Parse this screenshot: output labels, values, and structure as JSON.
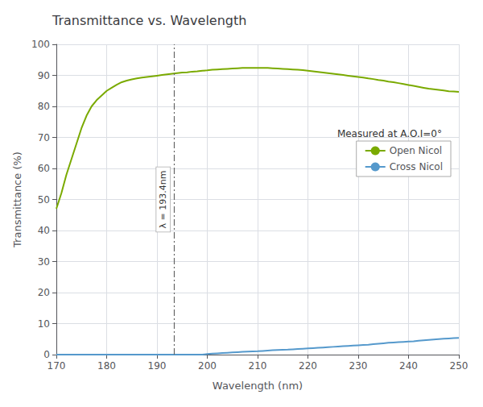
{
  "chart_data": {
    "type": "line",
    "title": "Transmittance vs. Wavelength",
    "x_label": "Wavelength (nm)",
    "y_label": "Transmittance (%)",
    "xlim": [
      170,
      250
    ],
    "ylim": [
      0,
      100
    ],
    "xticks": [
      170,
      180,
      190,
      200,
      210,
      220,
      230,
      240,
      250
    ],
    "yticks": [
      0,
      10,
      20,
      30,
      40,
      50,
      60,
      70,
      80,
      90,
      100
    ],
    "grid": true,
    "legend": "right",
    "legend_title": "Measured at A.O.I=0°",
    "annotations": [
      {
        "x": 193.4,
        "label": "λ = 193.4nm"
      }
    ],
    "x": [
      170,
      171,
      172,
      173,
      174,
      175,
      176,
      177,
      178,
      179,
      180,
      181,
      182,
      183,
      184,
      185,
      186,
      187,
      188,
      189,
      190,
      191,
      192,
      193,
      194,
      195,
      196,
      197,
      198,
      199,
      200,
      201,
      202,
      203,
      204,
      205,
      206,
      207,
      208,
      209,
      210,
      211,
      212,
      213,
      214,
      215,
      216,
      217,
      218,
      219,
      220,
      221,
      222,
      223,
      224,
      225,
      226,
      227,
      228,
      229,
      230,
      231,
      232,
      233,
      234,
      235,
      236,
      237,
      238,
      239,
      240,
      241,
      242,
      243,
      244,
      245,
      246,
      247,
      248,
      249,
      250
    ],
    "series": [
      {
        "name": "Open Nicol",
        "color": "#7aaa00",
        "values": [
          47,
          52,
          58,
          63,
          68,
          73,
          77,
          80,
          82,
          83.5,
          85,
          86,
          87,
          87.8,
          88.3,
          88.7,
          89.0,
          89.3,
          89.5,
          89.7,
          89.9,
          90.1,
          90.3,
          90.5,
          90.7,
          90.9,
          91.0,
          91.2,
          91.3,
          91.5,
          91.6,
          91.8,
          91.9,
          92.0,
          92.1,
          92.2,
          92.3,
          92.4,
          92.4,
          92.4,
          92.4,
          92.4,
          92.4,
          92.3,
          92.2,
          92.1,
          92.0,
          91.9,
          91.8,
          91.7,
          91.5,
          91.3,
          91.1,
          90.9,
          90.7,
          90.5,
          90.3,
          90.1,
          89.9,
          89.7,
          89.5,
          89.3,
          89.0,
          88.8,
          88.5,
          88.3,
          88.0,
          87.8,
          87.5,
          87.2,
          86.9,
          86.6,
          86.3,
          86.0,
          85.7,
          85.5,
          85.3,
          85.1,
          84.9,
          84.8,
          84.7
        ]
      },
      {
        "name": "Cross Nicol",
        "color": "#5599cc",
        "values": [
          0.0,
          0.0,
          0.0,
          0.0,
          0.0,
          0.0,
          0.0,
          0.0,
          0.0,
          0.0,
          0.0,
          0.0,
          0.0,
          0.0,
          0.0,
          0.0,
          0.0,
          0.0,
          0.0,
          0.0,
          0.0,
          0.0,
          0.0,
          0.0,
          0.0,
          0.0,
          0.0,
          0.0,
          0.0,
          0.0,
          0.2,
          0.3,
          0.4,
          0.5,
          0.6,
          0.7,
          0.8,
          0.9,
          1.0,
          1.05,
          1.1,
          1.2,
          1.3,
          1.4,
          1.5,
          1.55,
          1.6,
          1.7,
          1.8,
          1.9,
          2.0,
          2.1,
          2.2,
          2.3,
          2.4,
          2.5,
          2.6,
          2.7,
          2.8,
          2.9,
          3.0,
          3.1,
          3.2,
          3.35,
          3.5,
          3.65,
          3.8,
          3.9,
          4.0,
          4.1,
          4.2,
          4.3,
          4.45,
          4.6,
          4.75,
          4.9,
          5.0,
          5.1,
          5.2,
          5.3,
          5.4
        ]
      }
    ]
  }
}
